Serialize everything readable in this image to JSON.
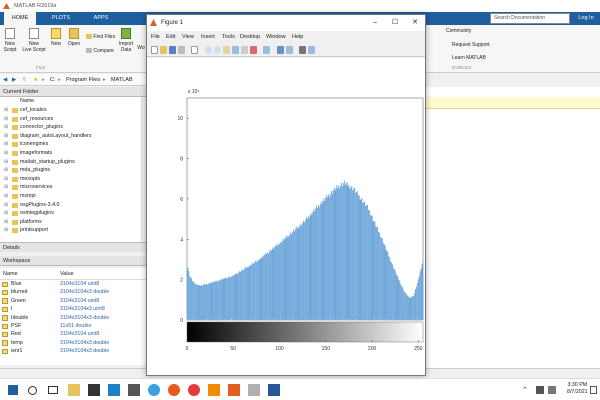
{
  "matlab": {
    "title": "MATLAB R2019a",
    "tabs": [
      "HOME",
      "PLOTS",
      "APPS"
    ],
    "search_placeholder": "Search Documentation",
    "login": "Log In",
    "ribbon": {
      "new_script": "New\nScript",
      "new_live_script": "New\nLive Script",
      "new": "New",
      "open": "Open",
      "find_files": "Find Files",
      "compare": "Compare",
      "import_data": "Import\nData",
      "workspace_short": "Wo",
      "file_group": "FILE",
      "community": "Community",
      "request_support": "Request Support",
      "learn_matlab": "Learn MATLAB",
      "resources_group": "OURCES"
    },
    "address": [
      "C:",
      "Program Files",
      "MATLAB"
    ],
    "current_folder": {
      "title": "Current Folder",
      "column": "Name",
      "items": [
        "cef_locales",
        "cef_resources",
        "connector_plugins",
        "diagram_autoLayout_handlers",
        "iconengines",
        "imageformats",
        "matlab_startup_plugins",
        "mda_plugins",
        "mexopts",
        "microservices",
        "msmpi",
        "osgPlugins-3.4.0",
        "osintegplugins",
        "platforms",
        "printsupport"
      ]
    },
    "details": "Details",
    "workspace": {
      "title": "Workspace",
      "col_name": "Name",
      "col_value": "Value",
      "rows": [
        {
          "name": "Blue",
          "value": "3104x3104 uint8"
        },
        {
          "name": "blurred",
          "value": "3104x3104x3 double"
        },
        {
          "name": "Green",
          "value": "3104x3104 uint8"
        },
        {
          "name": "I",
          "value": "3104x3104x3 uint8"
        },
        {
          "name": "Idouble",
          "value": "3104x3104x3 double"
        },
        {
          "name": "PSF",
          "value": "11x51 double"
        },
        {
          "name": "Red",
          "value": "3104x3104 uint8"
        },
        {
          "name": "temp",
          "value": "3104x3104x3 double"
        },
        {
          "name": "wnr1",
          "value": "3104x3104x3 double"
        }
      ]
    }
  },
  "figure": {
    "title": "Figure 1",
    "menu": [
      "File",
      "Edit",
      "View",
      "Insert",
      "Tools",
      "Desktop",
      "Window",
      "Help"
    ],
    "win_buttons": [
      "–",
      "☐",
      "✕"
    ]
  },
  "chart_data": {
    "type": "bar",
    "title": "",
    "xlabel": "",
    "ylabel": "",
    "exponent_label": "x 10⁴",
    "xlim": [
      0,
      255
    ],
    "ylim": [
      0,
      110000
    ],
    "xticks": [
      0,
      50,
      100,
      150,
      200,
      250
    ],
    "yticks": [
      0,
      20000,
      40000,
      60000,
      80000,
      100000
    ],
    "ytick_labels": [
      "0",
      "2",
      "4",
      "6",
      "8",
      "10"
    ],
    "bar_color": "#5b9bd5",
    "series_profile": [
      {
        "x": 0,
        "y": 28000
      },
      {
        "x": 3,
        "y": 22000
      },
      {
        "x": 8,
        "y": 18000
      },
      {
        "x": 15,
        "y": 17000
      },
      {
        "x": 30,
        "y": 19000
      },
      {
        "x": 50,
        "y": 22000
      },
      {
        "x": 75,
        "y": 29000
      },
      {
        "x": 100,
        "y": 38000
      },
      {
        "x": 125,
        "y": 48000
      },
      {
        "x": 145,
        "y": 58000
      },
      {
        "x": 160,
        "y": 65000
      },
      {
        "x": 170,
        "y": 68000
      },
      {
        "x": 180,
        "y": 65000
      },
      {
        "x": 195,
        "y": 56000
      },
      {
        "x": 210,
        "y": 41000
      },
      {
        "x": 225,
        "y": 24000
      },
      {
        "x": 235,
        "y": 14000
      },
      {
        "x": 240,
        "y": 11000
      },
      {
        "x": 245,
        "y": 12000
      },
      {
        "x": 250,
        "y": 20000
      },
      {
        "x": 255,
        "y": 30000
      }
    ]
  },
  "taskbar": {
    "time": "3:30 PM",
    "date": "8/7/2021"
  }
}
